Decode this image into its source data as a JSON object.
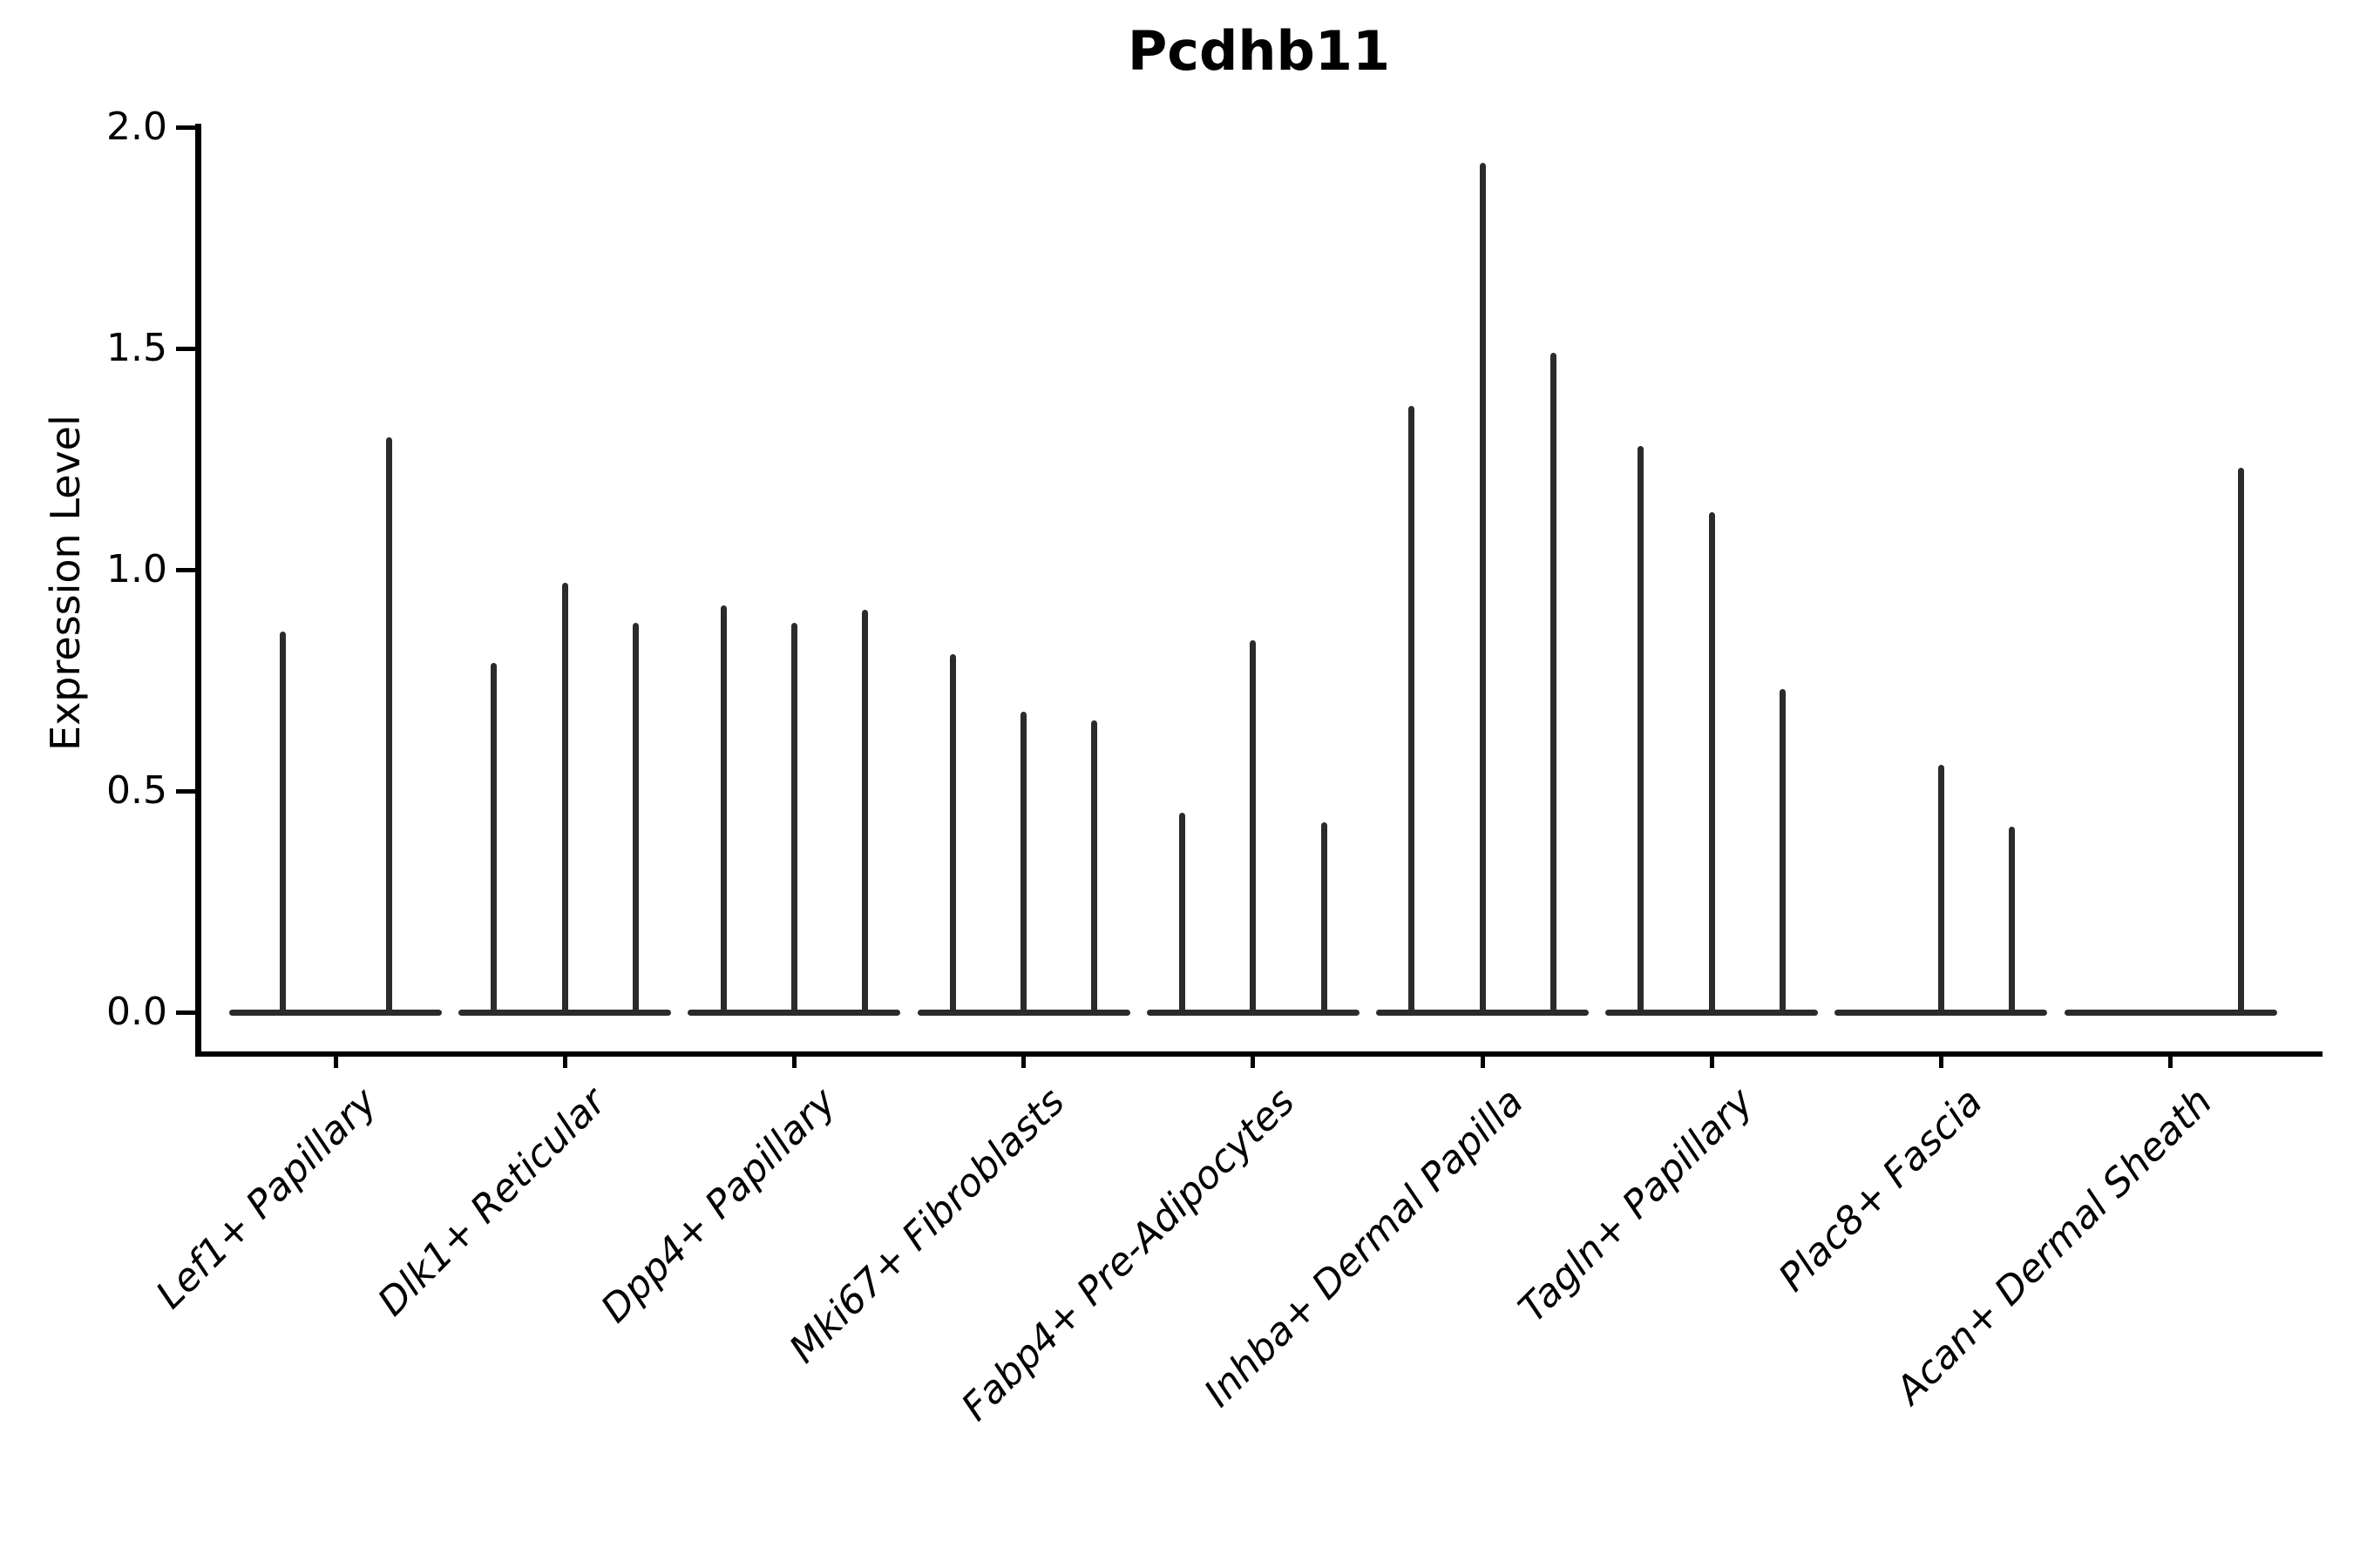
{
  "chart_data": {
    "type": "violin",
    "title": "Pcdhb11",
    "ylabel": "Expression Level",
    "xlabel": "",
    "ylim": [
      0.0,
      2.0
    ],
    "yticks": [
      0.0,
      0.5,
      1.0,
      1.5,
      2.0
    ],
    "ytick_labels": [
      "0.0",
      "0.5",
      "1.0",
      "1.5",
      "2.0"
    ],
    "grid": false,
    "legend": false,
    "line_color": "#2b2b2b",
    "axis_color": "#000000",
    "categories": [
      "Lef1+ Papillary",
      "Dlk1+ Reticular",
      "Dpp4+ Papillary",
      "Mki67+ Fibroblasts",
      "Fabp4+ Pre-Adipocytes",
      "Inhba+ Dermal Papilla",
      "Tagln+ Papillary",
      "Plac8+ Fascia",
      "Acan+ Dermal Sheath"
    ],
    "groups": [
      {
        "label": "Lef1+ Papillary",
        "violin_max_values": [
          0.86,
          1.3
        ]
      },
      {
        "label": "Dlk1+ Reticular",
        "violin_max_values": [
          0.79,
          0.97,
          0.88
        ]
      },
      {
        "label": "Dpp4+ Papillary",
        "violin_max_values": [
          0.92,
          0.88,
          0.91
        ]
      },
      {
        "label": "Mki67+ Fibroblasts",
        "violin_max_values": [
          0.81,
          0.68,
          0.66
        ]
      },
      {
        "label": "Fabp4+ Pre-Adipocytes",
        "violin_max_values": [
          0.45,
          0.84,
          0.43
        ]
      },
      {
        "label": "Inhba+ Dermal Papilla",
        "violin_max_values": [
          1.37,
          1.92,
          1.49
        ]
      },
      {
        "label": "Tagln+ Papillary",
        "violin_max_values": [
          1.28,
          1.13,
          0.73
        ]
      },
      {
        "label": "Plac8+ Fascia",
        "violin_max_values": [
          0.0,
          0.56,
          0.42
        ]
      },
      {
        "label": "Acan+ Dermal Sheath",
        "violin_max_values": [
          0.0,
          0.0,
          1.23
        ]
      }
    ],
    "note": "Thin (collapsed) violins rendered as vertical spikes from 0 up to each violin's maximum expression; flat baselines at 0 span each cluster's violin slots."
  }
}
